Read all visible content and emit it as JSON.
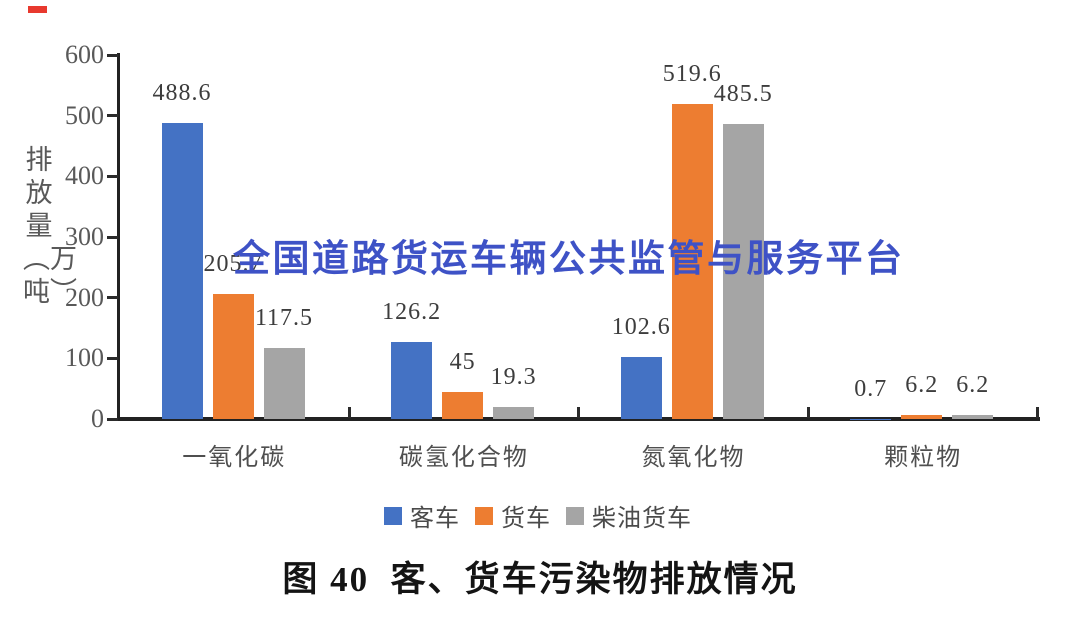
{
  "watermark": "全国道路货运车辆公共监管与服务平台",
  "caption": "图 40  客、货车污染物排放情况",
  "colors": {
    "watermark": "#3E52C6",
    "axis": "#222222",
    "tick": "#2b2b2b",
    "value_label": "#3d3d3d",
    "red_mark": "#E8392E",
    "series_blue": "#4472C4",
    "series_orange": "#ED7D31",
    "series_gray": "#A5A5A5"
  },
  "chart_data": {
    "type": "bar",
    "title": "图 40 客、货车污染物排放情况",
    "xlabel": "",
    "ylabel": "排放量（万吨）",
    "ylim": [
      0,
      600
    ],
    "yticks": [
      0,
      100,
      200,
      300,
      400,
      500,
      600
    ],
    "grid": false,
    "legend_position": "bottom",
    "categories": [
      "一氧化碳",
      "碳氢化合物",
      "氮氧化物",
      "颗粒物"
    ],
    "series": [
      {
        "name": "客车",
        "color": "#4472C4",
        "values": [
          488.6,
          126.2,
          102.6,
          0.7
        ],
        "labels": [
          "488.6",
          "126.2",
          "102.6",
          "0.7"
        ]
      },
      {
        "name": "货车",
        "color": "#ED7D31",
        "values": [
          205.7,
          45,
          519.6,
          6.2
        ],
        "labels": [
          "205.7",
          "45",
          "519.6",
          "6.2"
        ]
      },
      {
        "name": "柴油货车",
        "color": "#A5A5A5",
        "values": [
          117.5,
          19.3,
          485.5,
          6.2
        ],
        "labels": [
          "117.5",
          "19.3",
          "485.5",
          "6.2"
        ]
      }
    ]
  }
}
